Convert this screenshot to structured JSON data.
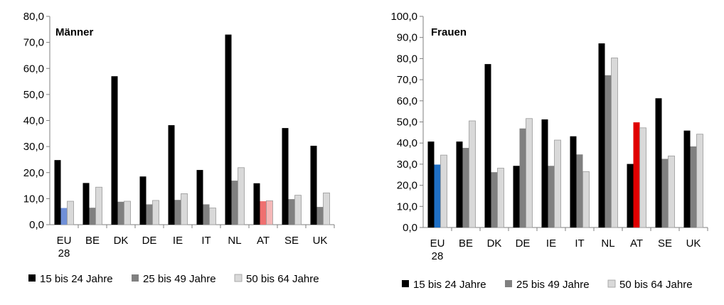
{
  "chart_data": [
    {
      "type": "bar",
      "title": "Männer",
      "categories": [
        "EU 28",
        "BE",
        "DK",
        "DE",
        "IE",
        "IT",
        "NL",
        "AT",
        "SE",
        "UK"
      ],
      "ylim": [
        0,
        80
      ],
      "yticks": [
        "0,0",
        "10,0",
        "20,0",
        "30,0",
        "40,0",
        "50,0",
        "60,0",
        "70,0",
        "80,0"
      ],
      "grid": false,
      "legend": "bottom",
      "series": [
        {
          "name": "15 bis 24 Jahre",
          "values": [
            24.8,
            16.0,
            57.0,
            18.5,
            38.2,
            21.0,
            73.0,
            15.9,
            37.1,
            30.3
          ]
        },
        {
          "name": "25 bis 49 Jahre",
          "values": [
            6.4,
            6.5,
            8.8,
            7.8,
            9.5,
            7.8,
            16.9,
            9.0,
            9.8,
            6.8
          ]
        },
        {
          "name": "50 bis 64 Jahre",
          "values": [
            9.0,
            14.4,
            9.0,
            9.3,
            11.9,
            6.4,
            21.9,
            9.2,
            11.3,
            12.2
          ]
        }
      ],
      "series_colors": [
        "#000000",
        "#808080",
        "#d9d9d9"
      ],
      "highlight_colors": {
        "0": {
          "1": "#7090d8"
        },
        "7": {
          "1": "#f07070",
          "2": "#f5b8b8"
        }
      }
    },
    {
      "type": "bar",
      "title": "Frauen",
      "categories": [
        "EU 28",
        "BE",
        "DK",
        "DE",
        "IE",
        "IT",
        "NL",
        "AT",
        "SE",
        "UK"
      ],
      "ylim": [
        0,
        100
      ],
      "yticks": [
        "0,0",
        "10,0",
        "20,0",
        "30,0",
        "40,0",
        "50,0",
        "60,0",
        "70,0",
        "80,0",
        "90,0",
        "100,0"
      ],
      "grid": false,
      "legend": "bottom",
      "series": [
        {
          "name": "15 bis 24 Jahre",
          "values": [
            40.7,
            40.7,
            77.4,
            29.2,
            51.2,
            43.2,
            87.2,
            30.1,
            61.2,
            45.9
          ]
        },
        {
          "name": "25 bis 49 Jahre",
          "values": [
            29.8,
            37.7,
            26.2,
            46.9,
            29.2,
            34.6,
            72.1,
            49.8,
            32.5,
            38.4
          ]
        },
        {
          "name": "50 bis 64 Jahre",
          "values": [
            34.3,
            50.5,
            28.1,
            51.6,
            41.4,
            26.5,
            80.3,
            47.2,
            33.9,
            44.2
          ]
        }
      ],
      "series_colors": [
        "#000000",
        "#808080",
        "#d9d9d9"
      ],
      "highlight_colors": {
        "0": {
          "1": "#1f6fc5"
        },
        "7": {
          "1": "#e00000"
        }
      }
    }
  ]
}
